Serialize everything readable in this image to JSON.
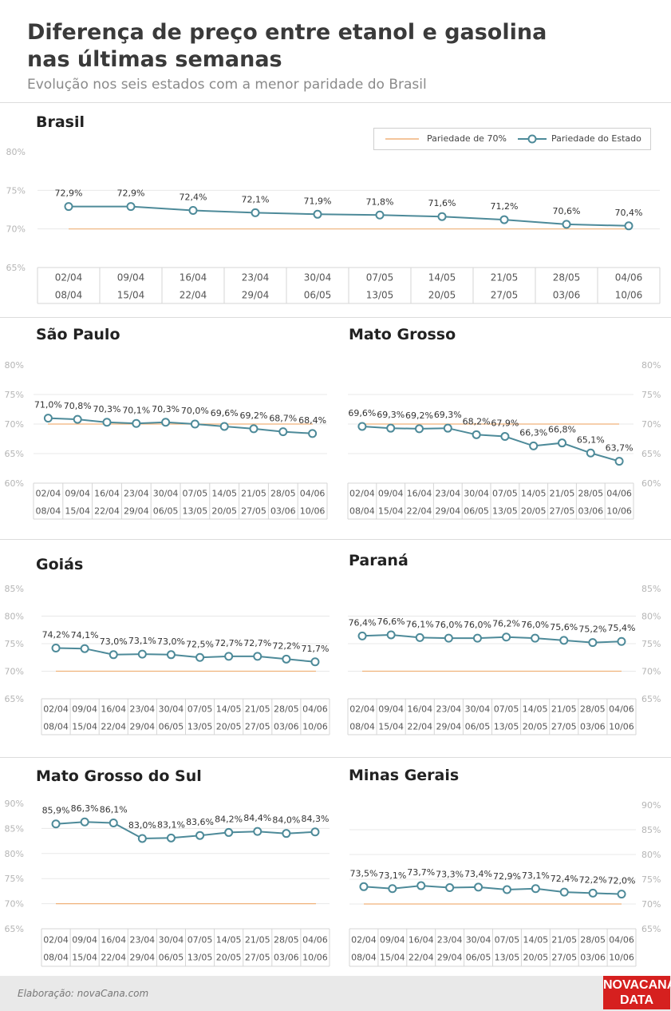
{
  "header": {
    "title": "Diferença de preço entre etanol e gasolina nas últimas semanas",
    "subtitle": "Evolução nos seis estados com a menor paridade do Brasil"
  },
  "legend": {
    "reference_label": "Pariedade de 70%",
    "series_label": "Pariedade do Estado",
    "reference_color": "#f0b27a",
    "series_color": "#4d8a99"
  },
  "footer": {
    "credit": "Elaboração: novaCana.com",
    "logo_line1": "NOVACANA",
    "logo_line2": "DATA",
    "logo_color": "#d6201f"
  },
  "chart_data": [
    {
      "type": "line",
      "title": "Brasil",
      "week_start": [
        "02/04",
        "09/04",
        "16/04",
        "23/04",
        "30/04",
        "07/05",
        "14/05",
        "21/05",
        "28/05",
        "04/06"
      ],
      "week_end": [
        "08/04",
        "15/04",
        "22/04",
        "29/04",
        "06/05",
        "13/05",
        "20/05",
        "27/05",
        "03/06",
        "10/06"
      ],
      "values": [
        72.9,
        72.9,
        72.4,
        72.1,
        71.9,
        71.8,
        71.6,
        71.2,
        70.6,
        70.4
      ],
      "labels": [
        "72,9%",
        "72,9%",
        "72,4%",
        "72,1%",
        "71,9%",
        "71,8%",
        "71,6%",
        "71,2%",
        "70,6%",
        "70,4%"
      ],
      "reference": 70,
      "ylim": [
        65,
        80
      ],
      "yticks": [
        "80%",
        "75%",
        "70%",
        "65%"
      ],
      "yaxis_side": "left"
    },
    {
      "type": "line",
      "title": "São Paulo",
      "week_start": [
        "02/04",
        "09/04",
        "16/04",
        "23/04",
        "30/04",
        "07/05",
        "14/05",
        "21/05",
        "28/05",
        "04/06"
      ],
      "week_end": [
        "08/04",
        "15/04",
        "22/04",
        "29/04",
        "06/05",
        "13/05",
        "20/05",
        "27/05",
        "03/06",
        "10/06"
      ],
      "values": [
        71.0,
        70.8,
        70.3,
        70.1,
        70.3,
        70.0,
        69.6,
        69.2,
        68.7,
        68.4
      ],
      "labels": [
        "71,0%",
        "70,8%",
        "70,3%",
        "70,1%",
        "70,3%",
        "70,0%",
        "69,6%",
        "69,2%",
        "68,7%",
        "68,4%"
      ],
      "reference": 70,
      "ylim": [
        60,
        80
      ],
      "yticks": [
        "80%",
        "75%",
        "70%",
        "65%",
        "60%"
      ],
      "yaxis_side": "left"
    },
    {
      "type": "line",
      "title": "Mato Grosso",
      "week_start": [
        "02/04",
        "09/04",
        "16/04",
        "23/04",
        "30/04",
        "07/05",
        "14/05",
        "21/05",
        "28/05",
        "04/06"
      ],
      "week_end": [
        "08/04",
        "15/04",
        "22/04",
        "29/04",
        "06/05",
        "13/05",
        "20/05",
        "27/05",
        "03/06",
        "10/06"
      ],
      "values": [
        69.6,
        69.3,
        69.2,
        69.3,
        68.2,
        67.9,
        66.3,
        66.8,
        65.1,
        63.7
      ],
      "labels": [
        "69,6%",
        "69,3%",
        "69,2%",
        "69,3%",
        "68,2%",
        "67,9%",
        "66,3%",
        "66,8%",
        "65,1%",
        "63,7%"
      ],
      "reference": 70,
      "ylim": [
        60,
        80
      ],
      "yticks": [
        "80%",
        "75%",
        "70%",
        "65%",
        "60%"
      ],
      "yaxis_side": "right"
    },
    {
      "type": "line",
      "title": "Goiás",
      "week_start": [
        "02/04",
        "09/04",
        "16/04",
        "23/04",
        "30/04",
        "07/05",
        "14/05",
        "21/05",
        "28/05",
        "04/06"
      ],
      "week_end": [
        "08/04",
        "15/04",
        "22/04",
        "29/04",
        "06/05",
        "13/05",
        "20/05",
        "27/05",
        "03/06",
        "10/06"
      ],
      "values": [
        74.2,
        74.1,
        73.0,
        73.1,
        73.0,
        72.5,
        72.7,
        72.7,
        72.2,
        71.7
      ],
      "labels": [
        "74,2%",
        "74,1%",
        "73,0%",
        "73,1%",
        "73,0%",
        "72,5%",
        "72,7%",
        "72,7%",
        "72,2%",
        "71,7%"
      ],
      "reference": 70,
      "ylim": [
        65,
        85
      ],
      "yticks": [
        "85%",
        "80%",
        "75%",
        "70%",
        "65%"
      ],
      "yaxis_side": "left"
    },
    {
      "type": "line",
      "title": "Paraná",
      "week_start": [
        "02/04",
        "09/04",
        "16/04",
        "23/04",
        "30/04",
        "07/05",
        "14/05",
        "21/05",
        "28/05",
        "04/06"
      ],
      "week_end": [
        "08/04",
        "15/04",
        "22/04",
        "29/04",
        "06/05",
        "13/05",
        "20/05",
        "27/05",
        "03/06",
        "10/06"
      ],
      "values": [
        76.4,
        76.6,
        76.1,
        76.0,
        76.0,
        76.2,
        76.0,
        75.6,
        75.2,
        75.4
      ],
      "labels": [
        "76,4%",
        "76,6%",
        "76,1%",
        "76,0%",
        "76,0%",
        "76,2%",
        "76,0%",
        "75,6%",
        "75,2%",
        "75,4%"
      ],
      "reference": 70,
      "ylim": [
        65,
        85
      ],
      "yticks": [
        "85%",
        "80%",
        "75%",
        "70%",
        "65%"
      ],
      "yaxis_side": "right"
    },
    {
      "type": "line",
      "title": "Mato Grosso do Sul",
      "week_start": [
        "02/04",
        "09/04",
        "16/04",
        "23/04",
        "30/04",
        "07/05",
        "14/05",
        "21/05",
        "28/05",
        "04/06"
      ],
      "week_end": [
        "08/04",
        "15/04",
        "22/04",
        "29/04",
        "06/05",
        "13/05",
        "20/05",
        "27/05",
        "03/06",
        "10/06"
      ],
      "values": [
        85.9,
        86.3,
        86.1,
        83.0,
        83.1,
        83.6,
        84.2,
        84.4,
        84.0,
        84.3
      ],
      "labels": [
        "85,9%",
        "86,3%",
        "86,1%",
        "83,0%",
        "83,1%",
        "83,6%",
        "84,2%",
        "84,4%",
        "84,0%",
        "84,3%"
      ],
      "reference": 70,
      "ylim": [
        65,
        90
      ],
      "yticks": [
        "90%",
        "85%",
        "80%",
        "75%",
        "70%",
        "65%"
      ],
      "yaxis_side": "left"
    },
    {
      "type": "line",
      "title": "Minas Gerais",
      "week_start": [
        "02/04",
        "09/04",
        "16/04",
        "23/04",
        "30/04",
        "07/05",
        "14/05",
        "21/05",
        "28/05",
        "04/06"
      ],
      "week_end": [
        "08/04",
        "15/04",
        "22/04",
        "29/04",
        "06/05",
        "13/05",
        "20/05",
        "27/05",
        "03/06",
        "10/06"
      ],
      "values": [
        73.5,
        73.1,
        73.7,
        73.3,
        73.4,
        72.9,
        73.1,
        72.4,
        72.2,
        72.0
      ],
      "labels": [
        "73,5%",
        "73,1%",
        "73,7%",
        "73,3%",
        "73,4%",
        "72,9%",
        "73,1%",
        "72,4%",
        "72,2%",
        "72,0%"
      ],
      "reference": 70,
      "ylim": [
        65,
        90
      ],
      "yticks": [
        "90%",
        "85%",
        "80%",
        "75%",
        "70%",
        "65%"
      ],
      "yaxis_side": "right"
    }
  ]
}
